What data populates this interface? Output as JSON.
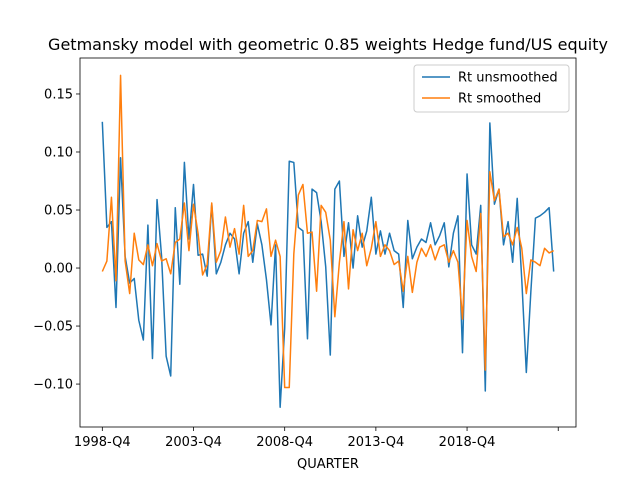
{
  "chart_data": {
    "type": "line",
    "title": "Getmansky model with geometric 0.85 weights Hedge fund/US equity",
    "xlabel": "QUARTER",
    "ylabel": "",
    "x_tick_labels": [
      "1998-Q4",
      "2003-Q4",
      "2008-Q4",
      "2013-Q4",
      "2018-Q4",
      ""
    ],
    "y_tick_labels": [
      "−0.10",
      "−0.05",
      "0.00",
      "0.05",
      "0.10",
      "0.15"
    ],
    "y_ticks": [
      -0.1,
      -0.05,
      0.0,
      0.05,
      0.1,
      0.15
    ],
    "ylim": [
      -0.137,
      0.181
    ],
    "x_start_quarter": "1998-Q4",
    "grid": false,
    "legend_position": "upper right",
    "series": [
      {
        "name": "Rt unsmoothed",
        "color": "#1f77b4",
        "values": [
          0.126,
          0.035,
          0.04,
          -0.034,
          0.095,
          0.01,
          -0.013,
          -0.009,
          -0.045,
          -0.062,
          0.037,
          -0.078,
          0.059,
          0.01,
          -0.076,
          -0.093,
          0.052,
          -0.014,
          0.091,
          0.025,
          0.072,
          0.011,
          0.012,
          -0.007,
          0.055,
          -0.005,
          0.005,
          0.02,
          0.03,
          0.025,
          -0.005,
          0.03,
          0.04,
          0.005,
          0.038,
          0.02,
          -0.01,
          -0.049,
          0.02,
          -0.12,
          -0.052,
          0.092,
          0.091,
          0.035,
          0.032,
          -0.061,
          0.068,
          0.065,
          0.04,
          0.001,
          -0.075,
          0.068,
          0.075,
          0.01,
          0.039,
          0.0,
          0.045,
          0.018,
          0.032,
          0.061,
          0.012,
          0.032,
          0.012,
          0.03,
          0.015,
          0.012,
          -0.034,
          0.041,
          0.008,
          0.018,
          0.025,
          0.022,
          0.039,
          0.02,
          0.028,
          0.039,
          0.001,
          0.03,
          0.045,
          -0.073,
          0.081,
          0.02,
          0.012,
          0.054,
          -0.106,
          0.125,
          0.055,
          0.068,
          0.02,
          0.04,
          0.005,
          0.06,
          -0.01,
          -0.09,
          -0.02,
          0.043,
          0.045,
          0.048,
          0.052,
          -0.003
        ]
      },
      {
        "name": "Rt smoothed",
        "color": "#ff7f0e",
        "values": [
          -0.003,
          0.006,
          0.061,
          -0.011,
          0.166,
          0.006,
          -0.022,
          0.03,
          0.007,
          0.003,
          0.02,
          0.002,
          0.021,
          0.006,
          0.008,
          -0.005,
          0.022,
          0.025,
          0.056,
          0.015,
          0.055,
          0.03,
          -0.006,
          0.003,
          0.056,
          0.005,
          0.015,
          0.044,
          0.018,
          0.034,
          0.012,
          0.054,
          0.01,
          0.015,
          0.041,
          0.04,
          0.051,
          0.01,
          0.024,
          0.01,
          -0.103,
          -0.103,
          0.012,
          0.063,
          0.072,
          0.03,
          0.031,
          -0.02,
          0.054,
          0.048,
          0.024,
          -0.042,
          0.005,
          0.04,
          -0.018,
          0.033,
          0.015,
          0.03,
          0.002,
          0.017,
          0.04,
          0.01,
          0.02,
          0.015,
          0.003,
          0.006,
          -0.02,
          0.01,
          -0.021,
          0.005,
          0.017,
          0.01,
          0.02,
          0.007,
          0.018,
          0.02,
          0.005,
          0.015,
          0.005,
          -0.044,
          0.041,
          0.01,
          -0.003,
          0.047,
          -0.088,
          0.083,
          0.058,
          0.068,
          0.027,
          0.03,
          0.02,
          0.035,
          0.017,
          -0.022,
          0.007,
          0.005,
          0.002,
          0.017,
          0.013,
          0.015
        ]
      }
    ]
  }
}
